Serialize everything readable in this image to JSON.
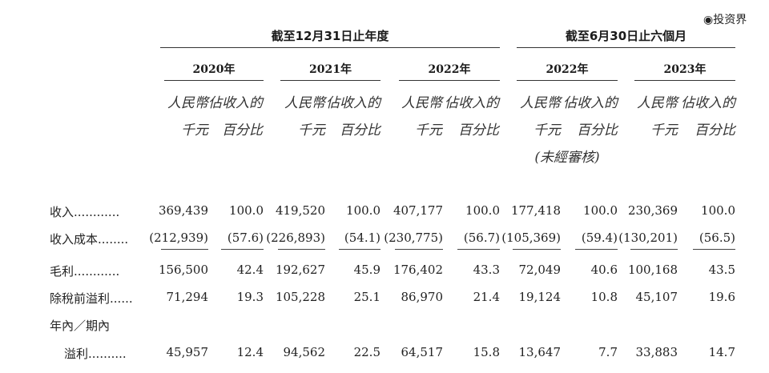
{
  "watermark": "◉投资界",
  "periods": [
    {
      "label": "截至12月31日止年度"
    },
    {
      "label": "截至6月30日止六個月"
    }
  ],
  "years": [
    "2020年",
    "2021年",
    "2022年",
    "2022年",
    "2023年"
  ],
  "col_headers": {
    "rmb_line1": "人民幣",
    "rmb_line2": "千元",
    "pct_line1": "佔收入的",
    "pct_line2": "百分比"
  },
  "unaudited": "(未經審核)",
  "rows": [
    {
      "label": "收入",
      "dots": "............",
      "values": [
        "369,439",
        "100.0",
        "419,520",
        "100.0",
        "407,177",
        "100.0",
        "177,418",
        "100.0",
        "230,369",
        "100.0"
      ]
    },
    {
      "label": "收入成本",
      "dots": "........",
      "values": [
        "(212,939)",
        "(57.6)",
        "(226,893)",
        "(54.1)",
        "(230,775)",
        "(56.7)",
        "(105,369)",
        "(59.4)",
        "(130,201)",
        "(56.5)"
      ]
    },
    {
      "label": "毛利",
      "dots": "............",
      "values": [
        "156,500",
        "42.4",
        "192,627",
        "45.9",
        "176,402",
        "43.3",
        "72,049",
        "40.6",
        "100,168",
        "43.5"
      ]
    },
    {
      "label": "除稅前溢利",
      "dots": "......",
      "values": [
        "71,294",
        "19.3",
        "105,228",
        "25.1",
        "86,970",
        "21.4",
        "19,124",
        "10.8",
        "45,107",
        "19.6"
      ]
    },
    {
      "label": "溢利",
      "dots": "..........",
      "values": [
        "45,957",
        "12.4",
        "94,562",
        "22.5",
        "64,517",
        "15.8",
        "13,647",
        "7.7",
        "33,883",
        "14.7"
      ]
    }
  ],
  "row_prefix": "年內／期內"
}
